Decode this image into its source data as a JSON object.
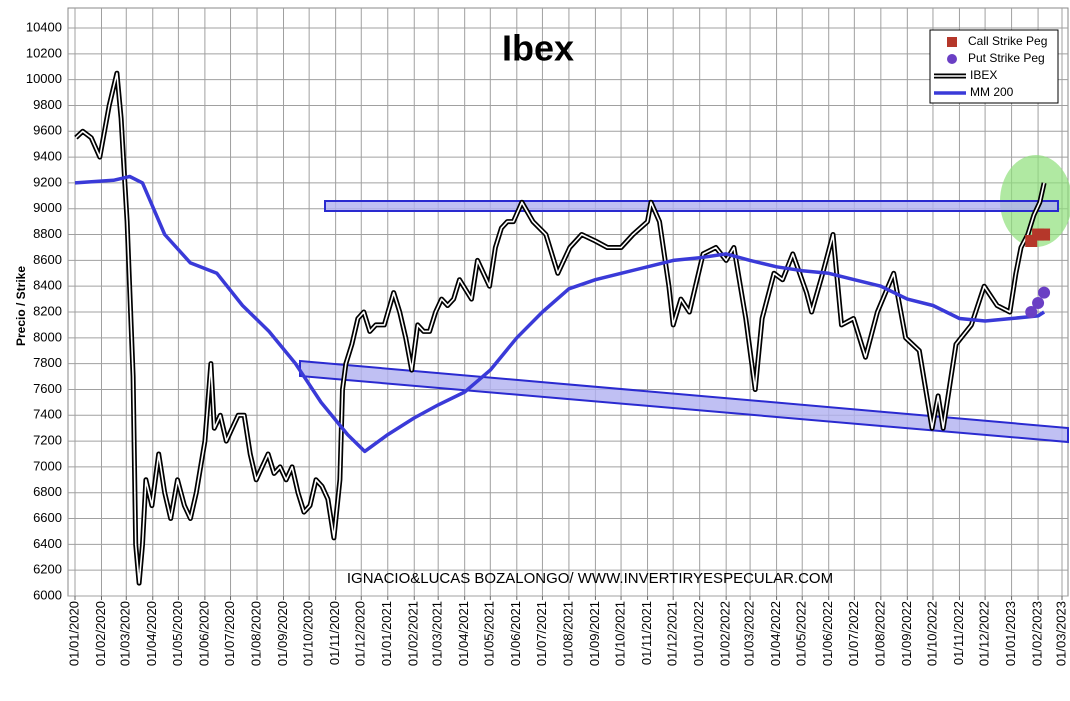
{
  "chart_data": {
    "type": "line",
    "title": "Ibex",
    "y_label": "Precio / Strike",
    "annotation": "IGNACIO&LUCAS BOZALONGO/ WWW.INVERTIRYESPECULAR.COM",
    "grid": true,
    "legend": "top-right",
    "ylim": [
      6000,
      10400
    ],
    "yticks": [
      6000,
      6200,
      6400,
      6600,
      6800,
      7000,
      7200,
      7400,
      7600,
      7800,
      8000,
      8200,
      8400,
      8600,
      8800,
      9000,
      9200,
      9400,
      9600,
      9800,
      10000,
      10200,
      10400
    ],
    "xlim": [
      "2020-01-01",
      "2023-03-01"
    ],
    "xticks": [
      {
        "value": "2020-01-01",
        "label": "01/01/2020"
      },
      {
        "value": "2020-02-01",
        "label": "01/02/2020"
      },
      {
        "value": "2020-03-01",
        "label": "01/03/2020"
      },
      {
        "value": "2020-04-01",
        "label": "01/04/2020"
      },
      {
        "value": "2020-05-01",
        "label": "01/05/2020"
      },
      {
        "value": "2020-06-01",
        "label": "01/06/2020"
      },
      {
        "value": "2020-07-01",
        "label": "01/07/2020"
      },
      {
        "value": "2020-08-01",
        "label": "01/08/2020"
      },
      {
        "value": "2020-09-01",
        "label": "01/09/2020"
      },
      {
        "value": "2020-10-01",
        "label": "01/10/2020"
      },
      {
        "value": "2020-11-01",
        "label": "01/11/2020"
      },
      {
        "value": "2020-12-01",
        "label": "01/12/2020"
      },
      {
        "value": "2021-01-01",
        "label": "01/01/2021"
      },
      {
        "value": "2021-02-01",
        "label": "01/02/2021"
      },
      {
        "value": "2021-03-01",
        "label": "01/03/2021"
      },
      {
        "value": "2021-04-01",
        "label": "01/04/2021"
      },
      {
        "value": "2021-05-01",
        "label": "01/05/2021"
      },
      {
        "value": "2021-06-01",
        "label": "01/06/2021"
      },
      {
        "value": "2021-07-01",
        "label": "01/07/2021"
      },
      {
        "value": "2021-08-01",
        "label": "01/08/2021"
      },
      {
        "value": "2021-09-01",
        "label": "01/09/2021"
      },
      {
        "value": "2021-10-01",
        "label": "01/10/2021"
      },
      {
        "value": "2021-11-01",
        "label": "01/11/2021"
      },
      {
        "value": "2021-12-01",
        "label": "01/12/2021"
      },
      {
        "value": "2022-01-01",
        "label": "01/01/2022"
      },
      {
        "value": "2022-02-01",
        "label": "01/02/2022"
      },
      {
        "value": "2022-03-01",
        "label": "01/03/2022"
      },
      {
        "value": "2022-04-01",
        "label": "01/04/2022"
      },
      {
        "value": "2022-05-01",
        "label": "01/05/2022"
      },
      {
        "value": "2022-06-01",
        "label": "01/06/2022"
      },
      {
        "value": "2022-07-01",
        "label": "01/07/2022"
      },
      {
        "value": "2022-08-01",
        "label": "01/08/2022"
      },
      {
        "value": "2022-09-01",
        "label": "01/09/2022"
      },
      {
        "value": "2022-10-01",
        "label": "01/10/2022"
      },
      {
        "value": "2022-11-01",
        "label": "01/11/2022"
      },
      {
        "value": "2022-12-01",
        "label": "01/12/2022"
      },
      {
        "value": "2023-01-01",
        "label": "01/01/2023"
      },
      {
        "value": "2023-02-01",
        "label": "01/02/2023"
      },
      {
        "value": "2023-03-01",
        "label": "01/03/2023"
      }
    ],
    "series": [
      {
        "name": "Call Strike Peg",
        "type": "scatter",
        "marker": "square",
        "color": "#b5372a",
        "x": [
          "2023-01-24",
          "2023-02-01",
          "2023-02-08"
        ],
        "values": [
          8750,
          8800,
          8800
        ]
      },
      {
        "name": "Put Strike Peg",
        "type": "scatter",
        "marker": "circle",
        "color": "#6a3fc4",
        "x": [
          "2023-01-24",
          "2023-02-01",
          "2023-02-08"
        ],
        "values": [
          8200,
          8270,
          8350
        ]
      },
      {
        "name": "IBEX",
        "type": "line",
        "style": "double",
        "color": "#000000",
        "x": [
          "2020-01-02",
          "2020-01-10",
          "2020-01-20",
          "2020-01-30",
          "2020-02-10",
          "2020-02-19",
          "2020-02-24",
          "2020-03-02",
          "2020-03-09",
          "2020-03-12",
          "2020-03-16",
          "2020-03-20",
          "2020-03-24",
          "2020-03-31",
          "2020-04-08",
          "2020-04-15",
          "2020-04-22",
          "2020-04-30",
          "2020-05-08",
          "2020-05-15",
          "2020-05-22",
          "2020-06-01",
          "2020-06-08",
          "2020-06-12",
          "2020-06-19",
          "2020-06-26",
          "2020-07-03",
          "2020-07-10",
          "2020-07-17",
          "2020-07-24",
          "2020-07-31",
          "2020-08-07",
          "2020-08-14",
          "2020-08-21",
          "2020-08-28",
          "2020-09-04",
          "2020-09-11",
          "2020-09-18",
          "2020-09-25",
          "2020-10-02",
          "2020-10-09",
          "2020-10-16",
          "2020-10-23",
          "2020-10-30",
          "2020-11-06",
          "2020-11-09",
          "2020-11-13",
          "2020-11-20",
          "2020-11-27",
          "2020-12-04",
          "2020-12-11",
          "2020-12-18",
          "2020-12-28",
          "2021-01-08",
          "2021-01-15",
          "2021-01-22",
          "2021-01-29",
          "2021-02-05",
          "2021-02-12",
          "2021-02-19",
          "2021-02-26",
          "2021-03-05",
          "2021-03-12",
          "2021-03-19",
          "2021-03-26",
          "2021-04-09",
          "2021-04-16",
          "2021-04-30",
          "2021-05-07",
          "2021-05-14",
          "2021-05-21",
          "2021-05-28",
          "2021-06-07",
          "2021-06-20",
          "2021-07-05",
          "2021-07-19",
          "2021-08-02",
          "2021-08-16",
          "2021-09-01",
          "2021-09-15",
          "2021-10-01",
          "2021-10-15",
          "2021-11-01",
          "2021-11-05",
          "2021-11-15",
          "2021-11-26",
          "2021-12-01",
          "2021-12-10",
          "2021-12-20",
          "2022-01-05",
          "2022-01-20",
          "2022-02-01",
          "2022-02-10",
          "2022-02-24",
          "2022-03-07",
          "2022-03-15",
          "2022-03-29",
          "2022-04-08",
          "2022-04-20",
          "2022-05-06",
          "2022-05-12",
          "2022-05-25",
          "2022-06-06",
          "2022-06-16",
          "2022-06-30",
          "2022-07-14",
          "2022-07-28",
          "2022-08-16",
          "2022-08-30",
          "2022-09-15",
          "2022-09-30",
          "2022-10-07",
          "2022-10-13",
          "2022-10-28",
          "2022-11-15",
          "2022-11-30",
          "2022-12-15",
          "2022-12-30",
          "2023-01-06",
          "2023-01-12",
          "2023-01-20",
          "2023-01-27",
          "2023-02-03",
          "2023-02-08"
        ],
        "values": [
          9550,
          9600,
          9550,
          9400,
          9800,
          10050,
          9700,
          8900,
          7700,
          6400,
          6100,
          6400,
          6900,
          6700,
          7100,
          6800,
          6600,
          6900,
          6700,
          6600,
          6800,
          7200,
          7800,
          7300,
          7400,
          7200,
          7300,
          7400,
          7400,
          7100,
          6900,
          7000,
          7100,
          6950,
          7000,
          6900,
          7000,
          6800,
          6650,
          6700,
          6900,
          6850,
          6750,
          6450,
          6900,
          7600,
          7800,
          7950,
          8150,
          8200,
          8050,
          8100,
          8100,
          8350,
          8200,
          8000,
          7750,
          8100,
          8050,
          8050,
          8200,
          8300,
          8250,
          8300,
          8450,
          8300,
          8600,
          8400,
          8700,
          8850,
          8900,
          8900,
          9050,
          8900,
          8800,
          8500,
          8700,
          8800,
          8750,
          8700,
          8700,
          8800,
          8900,
          9050,
          8900,
          8400,
          8100,
          8300,
          8200,
          8650,
          8700,
          8600,
          8700,
          8150,
          7600,
          8150,
          8500,
          8450,
          8650,
          8350,
          8200,
          8500,
          8800,
          8100,
          8150,
          7850,
          8200,
          8500,
          8000,
          7900,
          7300,
          7550,
          7300,
          7950,
          8100,
          8400,
          8250,
          8200,
          8500,
          8700,
          8800,
          8950,
          9050,
          9200
        ]
      },
      {
        "name": "MM 200",
        "type": "line",
        "color": "#3a3ad8",
        "x": [
          "2020-01-01",
          "2020-02-15",
          "2020-03-05",
          "2020-03-20",
          "2020-04-15",
          "2020-05-15",
          "2020-06-15",
          "2020-07-15",
          "2020-08-15",
          "2020-09-15",
          "2020-10-15",
          "2020-11-15",
          "2020-12-05",
          "2021-01-01",
          "2021-02-01",
          "2021-03-01",
          "2021-04-01",
          "2021-05-01",
          "2021-06-01",
          "2021-07-01",
          "2021-08-01",
          "2021-09-01",
          "2021-10-01",
          "2021-11-01",
          "2021-12-01",
          "2022-01-01",
          "2022-02-01",
          "2022-03-01",
          "2022-04-01",
          "2022-05-01",
          "2022-06-01",
          "2022-07-01",
          "2022-08-01",
          "2022-09-01",
          "2022-10-01",
          "2022-11-01",
          "2022-12-01",
          "2023-01-01",
          "2023-02-01",
          "2023-02-08"
        ],
        "values": [
          9200,
          9220,
          9250,
          9200,
          8800,
          8580,
          8500,
          8250,
          8050,
          7800,
          7500,
          7250,
          7120,
          7250,
          7380,
          7480,
          7580,
          7750,
          8000,
          8200,
          8380,
          8450,
          8500,
          8550,
          8600,
          8620,
          8650,
          8600,
          8550,
          8520,
          8500,
          8450,
          8400,
          8300,
          8250,
          8150,
          8130,
          8150,
          8170,
          8200
        ]
      }
    ]
  }
}
